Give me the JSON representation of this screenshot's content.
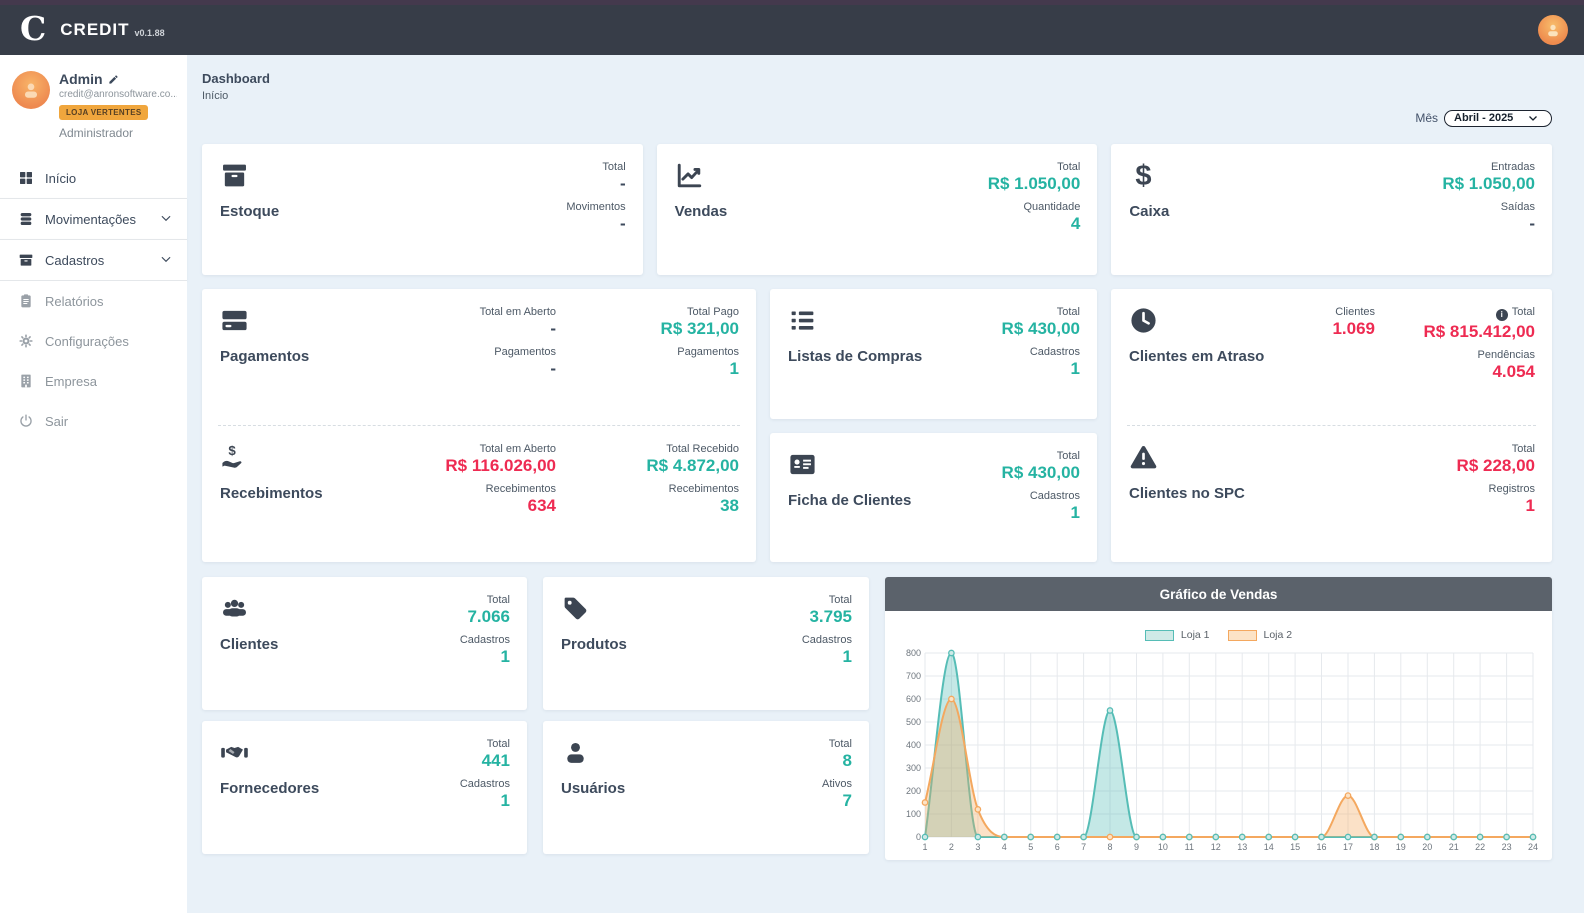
{
  "header": {
    "logo_letter": "C",
    "app_name": "CREDIT",
    "version": "v0.1.88"
  },
  "sidebar": {
    "user": {
      "name": "Admin",
      "email": "credit@anronsoftware.co...",
      "badge": "LOJA VERTENTES",
      "role": "Administrador"
    },
    "items": [
      {
        "label": "Início",
        "icon": "grid-icon"
      },
      {
        "label": "Movimentações",
        "icon": "stack-icon"
      },
      {
        "label": "Cadastros",
        "icon": "archive-icon"
      },
      {
        "label": "Relatórios",
        "icon": "clipboard-icon"
      },
      {
        "label": "Configurações",
        "icon": "gear-icon"
      },
      {
        "label": "Empresa",
        "icon": "building-icon"
      },
      {
        "label": "Sair",
        "icon": "power-icon"
      }
    ]
  },
  "breadcrumb": {
    "title": "Dashboard",
    "subtitle": "Início"
  },
  "filters": {
    "month_label": "Mês",
    "month_value": "Abril - 2025"
  },
  "colors": {
    "accent_green": "#25b3a2",
    "alert_red": "#ee2b52",
    "header_bg": "#373d48",
    "top_strip": "#44394d",
    "badge_orange": "#f0a63d",
    "main_bg": "#e9f1f8",
    "chart_header_bg": "#5b626b"
  },
  "cards": {
    "estoque": {
      "title": "Estoque",
      "icon": "box-icon",
      "stats": [
        {
          "label": "Total",
          "value": "-"
        },
        {
          "label": "Movimentos",
          "value": "-"
        }
      ]
    },
    "vendas": {
      "title": "Vendas",
      "icon": "chart-line-icon",
      "stats": [
        {
          "label": "Total",
          "value": "R$ 1.050,00"
        },
        {
          "label": "Quantidade",
          "value": "4"
        }
      ]
    },
    "caixa": {
      "title": "Caixa",
      "icon": "dollar-icon",
      "stats": [
        {
          "label": "Entradas",
          "value": "R$ 1.050,00"
        },
        {
          "label": "Saídas",
          "value": "-"
        }
      ]
    },
    "pagamentos": {
      "title": "Pagamentos",
      "icon": "credit-card-icon",
      "col1": [
        {
          "label": "Total em Aberto",
          "value": "-"
        },
        {
          "label": "Pagamentos",
          "value": "-"
        }
      ],
      "col2": [
        {
          "label": "Total Pago",
          "value": "R$ 321,00"
        },
        {
          "label": "Pagamentos",
          "value": "1"
        }
      ]
    },
    "recebimentos": {
      "title": "Recebimentos",
      "icon": "hand-dollar-icon",
      "col1": [
        {
          "label": "Total em Aberto",
          "value": "R$ 116.026,00"
        },
        {
          "label": "Recebimentos",
          "value": "634"
        }
      ],
      "col2": [
        {
          "label": "Total Recebido",
          "value": "R$ 4.872,00"
        },
        {
          "label": "Recebimentos",
          "value": "38"
        }
      ]
    },
    "listas_compras": {
      "title": "Listas de Compras",
      "icon": "list-icon",
      "stats": [
        {
          "label": "Total",
          "value": "R$ 430,00"
        },
        {
          "label": "Cadastros",
          "value": "1"
        }
      ]
    },
    "ficha_clientes": {
      "title": "Ficha de Clientes",
      "icon": "id-card-icon",
      "stats": [
        {
          "label": "Total",
          "value": "R$ 430,00"
        },
        {
          "label": "Cadastros",
          "value": "1"
        }
      ]
    },
    "clientes_atraso": {
      "title": "Clientes em Atraso",
      "icon": "clock-icon",
      "clientes_label": "Clientes",
      "clientes_value": "1.069",
      "total_label": "Total",
      "total_value": "R$ 815.412,00",
      "pendencias_label": "Pendências",
      "pendencias_value": "4.054"
    },
    "clientes_spc": {
      "title": "Clientes no SPC",
      "icon": "warning-icon",
      "stats": [
        {
          "label": "Total",
          "value": "R$ 228,00"
        },
        {
          "label": "Registros",
          "value": "1"
        }
      ]
    },
    "clientes": {
      "title": "Clientes",
      "icon": "users-icon",
      "stats": [
        {
          "label": "Total",
          "value": "7.066"
        },
        {
          "label": "Cadastros",
          "value": "1"
        }
      ]
    },
    "produtos": {
      "title": "Produtos",
      "icon": "tag-icon",
      "stats": [
        {
          "label": "Total",
          "value": "3.795"
        },
        {
          "label": "Cadastros",
          "value": "1"
        }
      ]
    },
    "fornecedores": {
      "title": "Fornecedores",
      "icon": "handshake-icon",
      "stats": [
        {
          "label": "Total",
          "value": "441"
        },
        {
          "label": "Cadastros",
          "value": "1"
        }
      ]
    },
    "usuarios": {
      "title": "Usuários",
      "icon": "user-icon",
      "stats": [
        {
          "label": "Total",
          "value": "8"
        },
        {
          "label": "Ativos",
          "value": "7"
        }
      ]
    }
  },
  "chart_data": {
    "type": "area",
    "title": "Gráfico de Vendas",
    "xlabel": "",
    "ylabel": "",
    "x": [
      1,
      2,
      3,
      4,
      5,
      6,
      7,
      8,
      9,
      10,
      11,
      12,
      13,
      14,
      15,
      16,
      17,
      18,
      19,
      20,
      21,
      22,
      23,
      24
    ],
    "ylim": [
      0,
      800
    ],
    "ytick_step": 100,
    "grid": true,
    "legend_position": "top-center",
    "smooth": true,
    "series": [
      {
        "name": "Loja 1",
        "line_color": "#56bdb6",
        "fill_color": "rgba(86,189,182,0.35)",
        "swatch_fill": "#cfeae7",
        "values": [
          0,
          800,
          0,
          0,
          0,
          0,
          0,
          550,
          0,
          0,
          0,
          0,
          0,
          0,
          0,
          0,
          0,
          0,
          0,
          0,
          0,
          0,
          0,
          0
        ]
      },
      {
        "name": "Loja 2",
        "line_color": "#f4a85f",
        "fill_color": "rgba(244,168,95,0.35)",
        "swatch_fill": "#fce3c6",
        "values": [
          150,
          600,
          120,
          0,
          0,
          0,
          0,
          0,
          0,
          0,
          0,
          0,
          0,
          0,
          0,
          0,
          180,
          0,
          0,
          0,
          0,
          0,
          0,
          0
        ]
      }
    ]
  }
}
